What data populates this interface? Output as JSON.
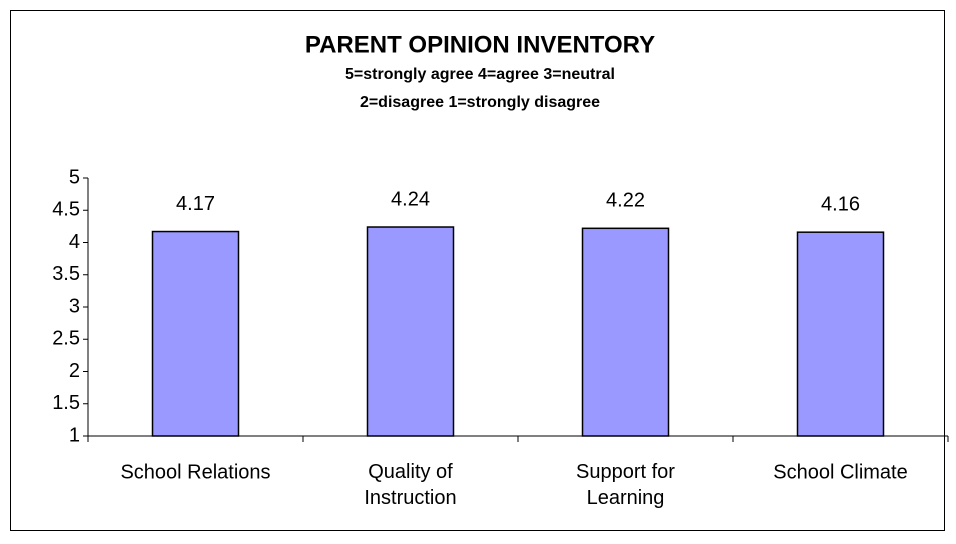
{
  "chart_data": {
    "type": "bar",
    "title": "PARENT OPINION INVENTORY",
    "subtitle": [
      "5=strongly agree  4=agree  3=neutral",
      "2=disagree  1=strongly disagree"
    ],
    "categories": [
      "School Relations",
      "Quality of\nInstruction",
      "Support for\nLearning",
      "School Climate"
    ],
    "values": [
      4.17,
      4.24,
      4.22,
      4.16
    ],
    "color": "#9999ff",
    "ylim": [
      1,
      5
    ],
    "yticks": [
      1,
      1.5,
      2,
      2.5,
      3,
      3.5,
      4,
      4.5,
      5
    ],
    "grid": false
  }
}
